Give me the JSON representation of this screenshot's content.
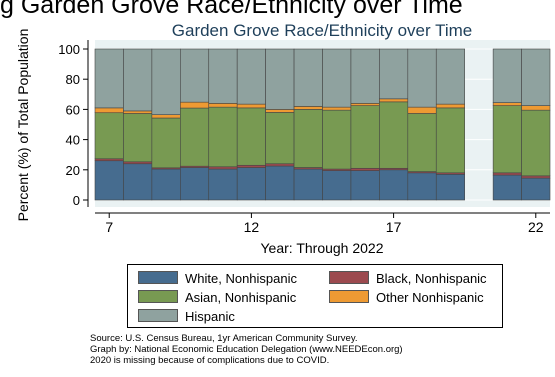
{
  "page_title": "g Garden Grove Race/Ethnicity over Time",
  "chart_data": {
    "type": "bar",
    "stacked": true,
    "title": "Garden Grove Race/Ethnicity over Time",
    "xlabel": "Year: Through 2022",
    "ylabel": "Percent (%) of Total Population",
    "ylim": [
      0,
      100
    ],
    "yticks": [
      0,
      20,
      40,
      60,
      80,
      100
    ],
    "xticks": [
      7,
      12,
      17,
      22
    ],
    "xlim": [
      6.5,
      22.5
    ],
    "grid": true,
    "legend_position": "bottom",
    "x": [
      7,
      8,
      9,
      10,
      11,
      12,
      13,
      14,
      15,
      16,
      17,
      18,
      19,
      21,
      22
    ],
    "series": [
      {
        "name": "White, Nonhispanic",
        "color": "#466c8f",
        "values": [
          26,
          24,
          20.5,
          21.5,
          20.5,
          21.5,
          22.5,
          20.5,
          19.5,
          19.5,
          20,
          18,
          17,
          16.5,
          14.5
        ]
      },
      {
        "name": "Black, Nonhispanic",
        "color": "#9c4a4f",
        "values": [
          1.3,
          1.3,
          0.8,
          0.9,
          1.5,
          1.5,
          1.5,
          1.0,
          1.0,
          1.5,
          1.0,
          0.8,
          1.0,
          1.5,
          1.5
        ]
      },
      {
        "name": "Asian, Nonhispanic",
        "color": "#789a52",
        "values": [
          30.5,
          32,
          33,
          38.5,
          39.5,
          38,
          34,
          38.5,
          39,
          41.5,
          44,
          38.5,
          43,
          44.5,
          43.5
        ]
      },
      {
        "name": "Other Nonhispanic",
        "color": "#ee9a33",
        "values": [
          3.2,
          1.7,
          2.2,
          3.9,
          2.5,
          2.5,
          2.0,
          2.0,
          2.0,
          1.5,
          2.0,
          4.2,
          2.5,
          2.0,
          3.0
        ]
      },
      {
        "name": "Hispanic",
        "color": "#8fa29f",
        "values": [
          39,
          41,
          43.5,
          35.2,
          36,
          36.5,
          40,
          38,
          38.5,
          36,
          33,
          38.5,
          36.5,
          35.5,
          37.5
        ]
      }
    ],
    "legend": [
      "White, Nonhispanic",
      "Black, Nonhispanic",
      "Asian, Nonhispanic",
      "Other Nonhispanic",
      "Hispanic"
    ]
  },
  "notes": [
    "Source:  U.S. Census Bureau, 1yr American Community Survey.",
    "Graph by: National Economic Education Delegation (www.NEEDEcon.org)",
    "2020 is missing because of complications due to COVID."
  ]
}
